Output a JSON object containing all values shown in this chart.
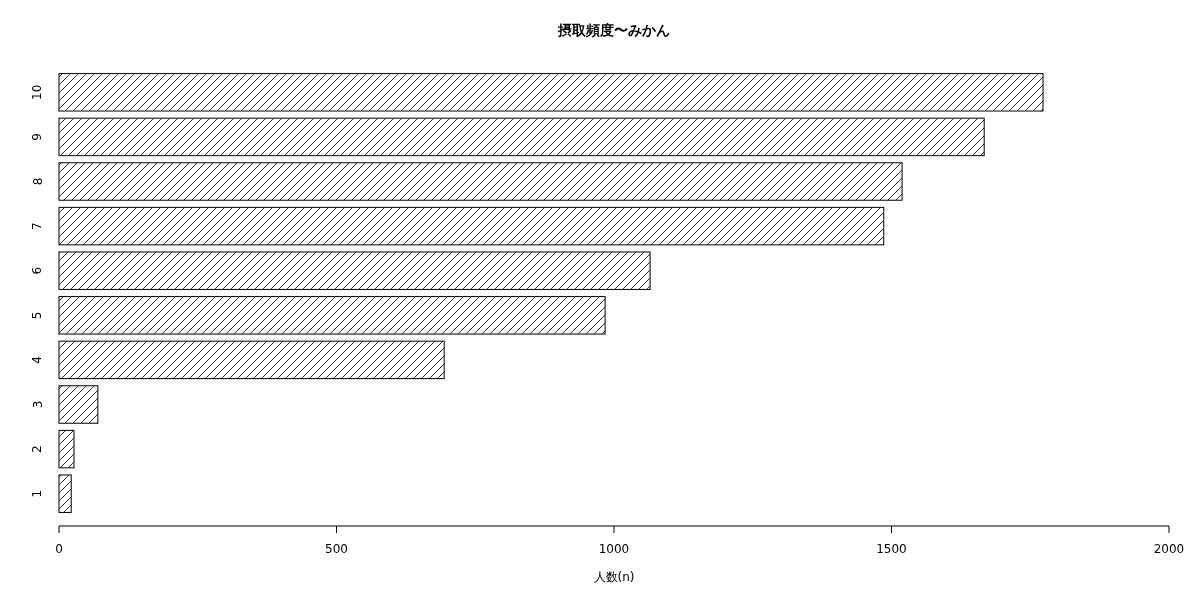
{
  "chart_data": {
    "type": "bar",
    "orientation": "horizontal",
    "title": "摂取頻度〜みかん",
    "xlabel": "人数(n)",
    "categories": [
      "10",
      "9",
      "8",
      "7",
      "6",
      "5",
      "4",
      "3",
      "2",
      "1"
    ],
    "values": [
      1773,
      1667,
      1519,
      1486,
      1065,
      984,
      694,
      70,
      27,
      22
    ],
    "color": "#000000",
    "xlim": [
      0,
      2000
    ],
    "xticks": [
      0,
      500,
      1000,
      1500,
      2000
    ],
    "grid": false
  }
}
